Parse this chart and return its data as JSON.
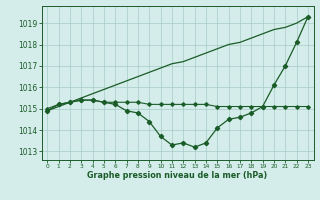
{
  "background_color": "#d4ecea",
  "plot_bg_color": "#d4ecea",
  "grid_color": "#a8ccca",
  "line_color": "#1a5c28",
  "title": "Graphe pression niveau de la mer (hPa)",
  "ylabel_ticks": [
    1013,
    1014,
    1015,
    1016,
    1017,
    1018,
    1019
  ],
  "xlim": [
    -0.5,
    23.5
  ],
  "ylim": [
    1012.6,
    1019.8
  ],
  "hours": [
    0,
    1,
    2,
    3,
    4,
    5,
    6,
    7,
    8,
    9,
    10,
    11,
    12,
    13,
    14,
    15,
    16,
    17,
    18,
    19,
    20,
    21,
    22,
    23
  ],
  "series_diagonal": [
    1014.9,
    1015.1,
    1015.3,
    1015.5,
    1015.7,
    1015.9,
    1016.1,
    1016.3,
    1016.5,
    1016.7,
    1016.9,
    1017.1,
    1017.2,
    1017.4,
    1017.6,
    1017.8,
    1018.0,
    1018.1,
    1018.3,
    1018.5,
    1018.7,
    1018.8,
    1019.0,
    1019.3
  ],
  "series_flat": [
    1015.0,
    1015.2,
    1015.3,
    1015.4,
    1015.4,
    1015.3,
    1015.3,
    1015.3,
    1015.3,
    1015.2,
    1015.2,
    1015.2,
    1015.2,
    1015.2,
    1015.2,
    1015.1,
    1015.1,
    1015.1,
    1015.1,
    1015.1,
    1015.1,
    1015.1,
    1015.1,
    1015.1
  ],
  "series_curve": [
    1014.9,
    1015.2,
    1015.3,
    1015.4,
    1015.4,
    1015.3,
    1015.2,
    1014.9,
    1014.8,
    1014.4,
    1013.7,
    1013.3,
    1013.4,
    1013.2,
    1013.4,
    1014.1,
    1014.5,
    1014.6,
    1014.8,
    1015.1,
    1016.1,
    1017.0,
    1018.1,
    1019.3
  ]
}
